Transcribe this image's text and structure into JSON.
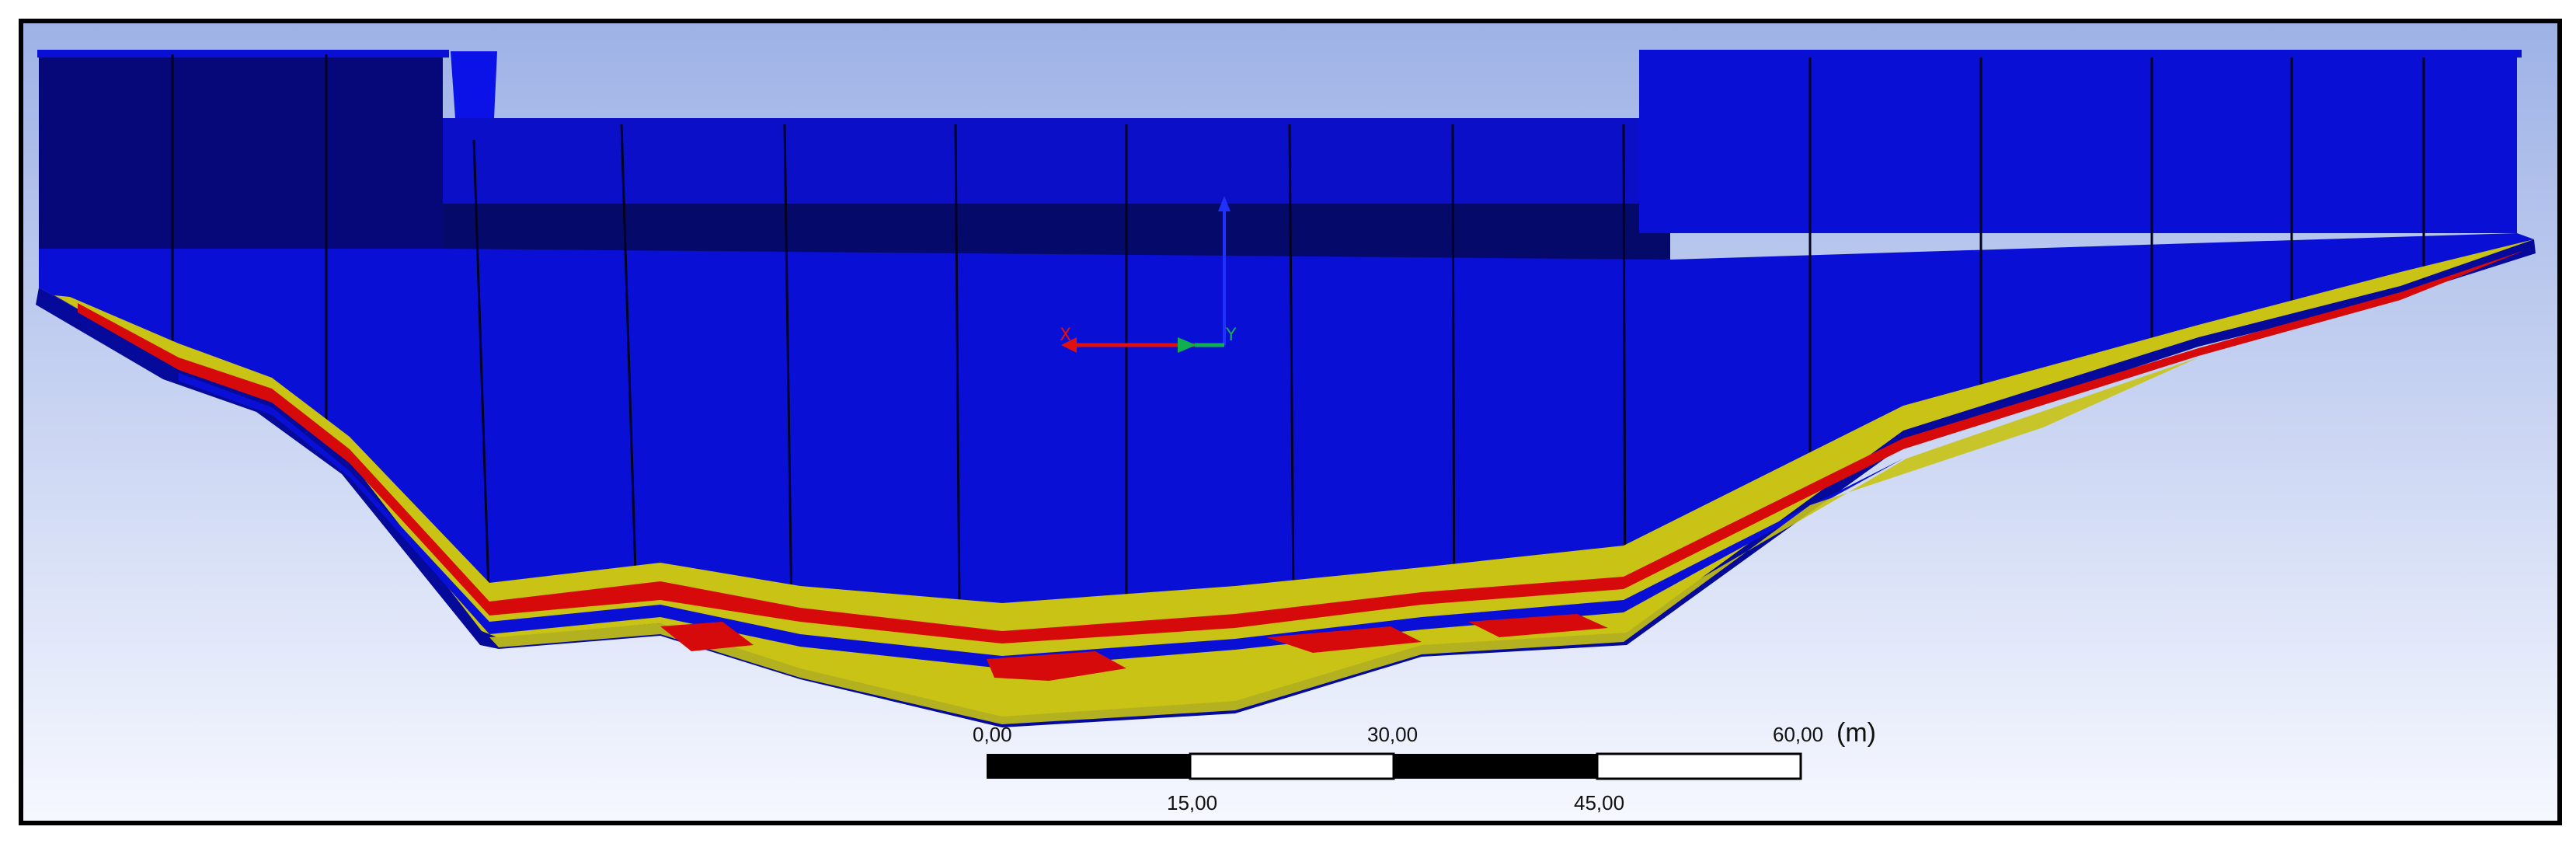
{
  "viewport": {
    "background_top": "#9eb2e6",
    "background_bottom": "#f6f8ff",
    "frame_color": "#000000"
  },
  "model": {
    "description_colors": {
      "body": "#0a0fd6",
      "body_shadow": "#050a7a",
      "band_yellow": "#c8c314",
      "band_red": "#d60a0a"
    }
  },
  "triad": {
    "x_label": "X",
    "y_label": "Y",
    "x_color": "#e01010",
    "y_color": "#10b050",
    "z_color": "#2030ff"
  },
  "scale_bar": {
    "top_labels": [
      "0,00",
      "30,00",
      "60,00"
    ],
    "bottom_labels": [
      "15,00",
      "45,00"
    ],
    "unit": "(m)"
  }
}
